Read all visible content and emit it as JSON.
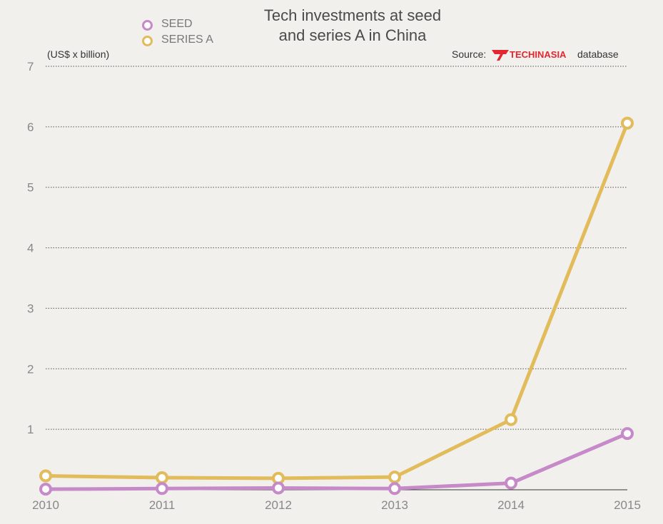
{
  "title_line1": "Tech investments at seed",
  "title_line2": "and series A in China",
  "unit_label": "(US$ x billion)",
  "source_label": "Source:",
  "logo_text": "TECHINASIA",
  "source_suffix": "database",
  "chart_data": {
    "type": "line",
    "x": [
      "2010",
      "2011",
      "2012",
      "2013",
      "2014",
      "2015"
    ],
    "series": [
      {
        "name": "SEED",
        "color": "#c58ac7",
        "values": [
          0.01,
          0.02,
          0.03,
          0.02,
          0.11,
          0.93
        ]
      },
      {
        "name": "SERIES A",
        "color": "#e2bb5a",
        "values": [
          0.23,
          0.2,
          0.19,
          0.21,
          1.16,
          6.06
        ]
      }
    ],
    "yticks": [
      "1",
      "2",
      "3",
      "4",
      "5",
      "6",
      "7"
    ],
    "ylim": [
      0,
      7
    ],
    "grid": true,
    "legend_position": "top-left"
  }
}
